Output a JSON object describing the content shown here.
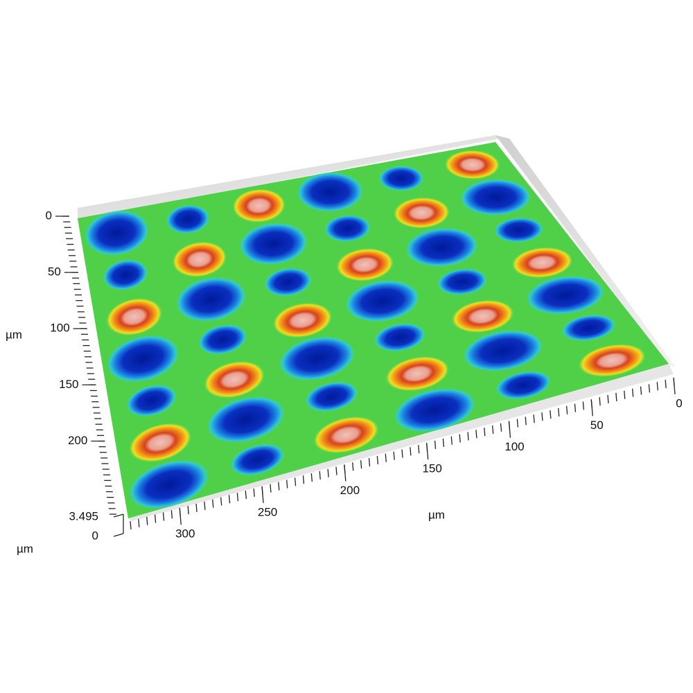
{
  "chart_data": {
    "type": "surface3d",
    "y_label": "µm",
    "ylim": [
      0,
      265
    ],
    "yticks": [
      0,
      50,
      100,
      150,
      200
    ],
    "x_label": "µm",
    "xlim": [
      0,
      330
    ],
    "xticks": [
      0,
      50,
      100,
      150,
      200,
      250,
      300
    ],
    "z_label": "µm",
    "zlim": [
      0,
      3.495
    ],
    "zticks": [
      0,
      3.495
    ]
  }
}
